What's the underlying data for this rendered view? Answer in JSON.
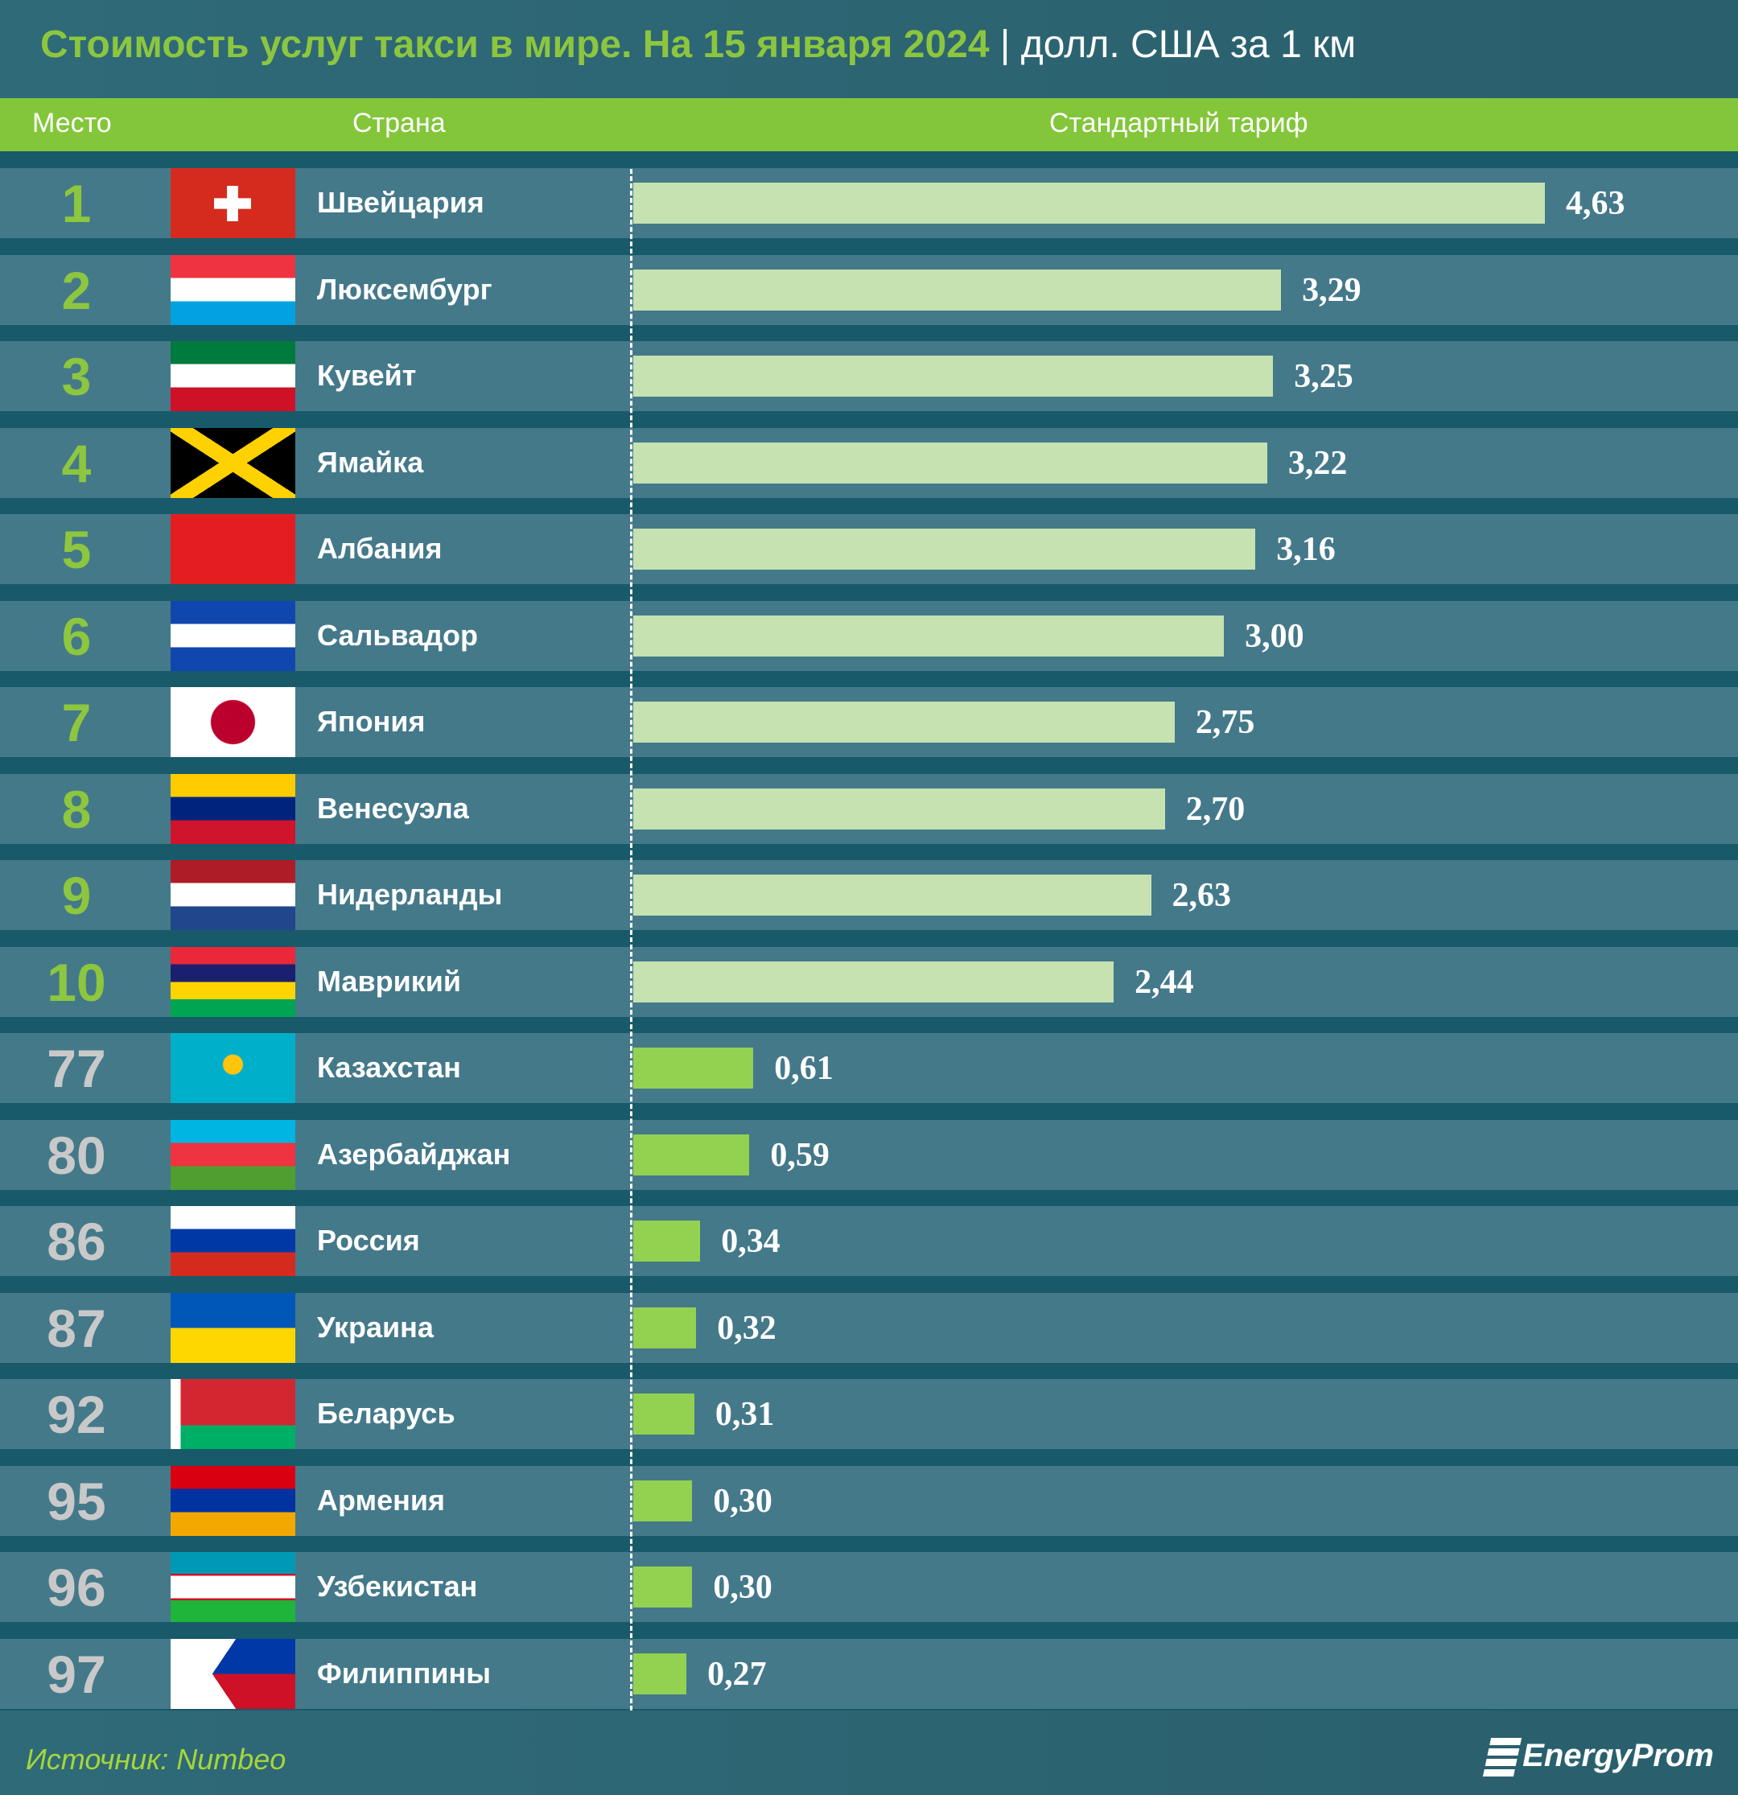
{
  "title": {
    "main": "Стоимость услуг такси в мире. На 15 января 2024",
    "unit": " | долл. США за 1 км"
  },
  "header": {
    "rank": "Место",
    "country": "Страна",
    "tariff": "Стандартный тариф"
  },
  "chart_data": {
    "type": "bar",
    "orientation": "horizontal",
    "title": "Стоимость услуг такси в мире. На 15 января 2024 | долл. США за 1 км",
    "categories": [
      "Швейцария",
      "Люксембург",
      "Кувейт",
      "Ямайка",
      "Албания",
      "Сальвадор",
      "Япония",
      "Венесуэла",
      "Нидерланды",
      "Маврикий",
      "Казахстан",
      "Азербайджан",
      "Россия",
      "Украина",
      "Беларусь",
      "Армения",
      "Узбекистан",
      "Филиппины"
    ],
    "ranks": [
      "1",
      "2",
      "3",
      "4",
      "5",
      "6",
      "7",
      "8",
      "9",
      "10",
      "77",
      "80",
      "86",
      "87",
      "92",
      "95",
      "96",
      "97"
    ],
    "values": [
      4.63,
      3.29,
      3.25,
      3.22,
      3.16,
      3.0,
      2.75,
      2.7,
      2.63,
      2.44,
      0.61,
      0.59,
      0.34,
      0.32,
      0.31,
      0.3,
      0.3,
      0.27
    ],
    "labels": [
      "4,63",
      "3,29",
      "3,25",
      "3,22",
      "3,16",
      "3,00",
      "2,75",
      "2,70",
      "2,63",
      "2,44",
      "0,61",
      "0,59",
      "0,34",
      "0,32",
      "0,31",
      "0,30",
      "0,30",
      "0,27"
    ],
    "flags": [
      "flag-switzerland",
      "flag-luxembourg",
      "flag-kuwait",
      "flag-jamaica",
      "flag-albania",
      "flag-el-salvador",
      "flag-japan",
      "flag-venezuela",
      "flag-netherlands",
      "flag-mauritius",
      "flag-kazakhstan",
      "flag-azerbaijan",
      "flag-russia",
      "flag-ukraine",
      "flag-belarus",
      "flag-armenia",
      "flag-uzbekistan",
      "flag-philippines"
    ],
    "colors": {
      "top10_bar": "#c5e2b0",
      "other_bar": "#93d150",
      "top10_rank": "#8dc63f",
      "other_rank": "#c9c9c9"
    },
    "grid": false
  },
  "footer": {
    "source": "Источник: Numbeo",
    "logo": "EnergyProm"
  }
}
